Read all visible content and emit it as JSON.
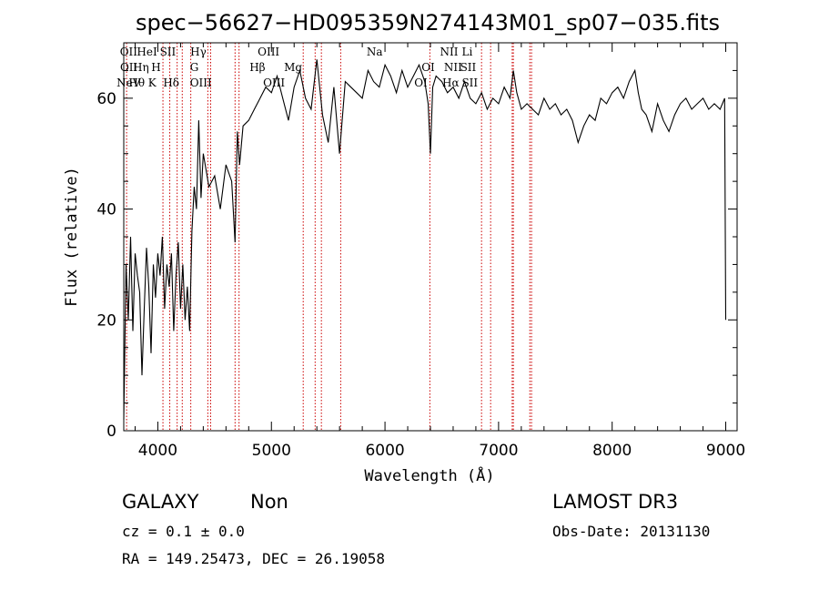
{
  "chart_data": {
    "type": "line",
    "title": "spec−56627−HD095359N274143M01_sp07−035.fits",
    "xlabel": "Wavelength (Å)",
    "ylabel": "Flux (relative)",
    "xlim": [
      3700,
      9100
    ],
    "ylim": [
      0,
      70
    ],
    "xticks": [
      4000,
      5000,
      6000,
      7000,
      8000,
      9000
    ],
    "yticks": [
      0,
      20,
      40,
      60
    ],
    "grid": false,
    "series": [
      {
        "x": [
          3700,
          3720,
          3740,
          3760,
          3780,
          3800,
          3820,
          3840,
          3860,
          3880,
          3900,
          3920,
          3940,
          3960,
          3980,
          4000,
          4020,
          4040,
          4060,
          4080,
          4100,
          4120,
          4140,
          4160,
          4180,
          4200,
          4220,
          4240,
          4260,
          4280,
          4300,
          4320,
          4340,
          4360,
          4380,
          4400,
          4450,
          4500,
          4550,
          4600,
          4650,
          4680,
          4700,
          4720,
          4750,
          4800,
          4850,
          4900,
          4950,
          5000,
          5050,
          5100,
          5150,
          5200,
          5250,
          5300,
          5350,
          5400,
          5450,
          5500,
          5550,
          5600,
          5650,
          5700,
          5750,
          5800,
          5850,
          5900,
          5950,
          6000,
          6050,
          6100,
          6150,
          6200,
          6250,
          6300,
          6350,
          6380,
          6400,
          6420,
          6450,
          6500,
          6550,
          6600,
          6650,
          6700,
          6750,
          6800,
          6850,
          6900,
          6950,
          7000,
          7050,
          7100,
          7130,
          7160,
          7200,
          7250,
          7300,
          7350,
          7400,
          7450,
          7500,
          7550,
          7600,
          7650,
          7700,
          7750,
          7800,
          7850,
          7900,
          7950,
          8000,
          8050,
          8100,
          8150,
          8200,
          8230,
          8260,
          8300,
          8350,
          8400,
          8450,
          8500,
          8550,
          8600,
          8650,
          8700,
          8750,
          8800,
          8850,
          8900,
          8950,
          8990,
          9000
        ],
        "y": [
          2,
          30,
          20,
          35,
          18,
          32,
          28,
          25,
          10,
          22,
          33,
          26,
          14,
          30,
          24,
          32,
          28,
          35,
          22,
          30,
          26,
          32,
          18,
          28,
          34,
          22,
          30,
          20,
          26,
          18,
          36,
          44,
          40,
          56,
          42,
          50,
          44,
          46,
          40,
          48,
          45,
          34,
          54,
          48,
          55,
          56,
          58,
          60,
          62,
          61,
          64,
          60,
          56,
          62,
          65,
          60,
          58,
          67,
          57,
          52,
          62,
          50,
          63,
          62,
          61,
          60,
          65,
          63,
          62,
          66,
          64,
          61,
          65,
          62,
          64,
          66,
          63,
          59,
          50,
          62,
          64,
          63,
          61,
          62,
          60,
          63,
          60,
          59,
          61,
          58,
          60,
          59,
          62,
          60,
          65,
          61,
          58,
          59,
          58,
          57,
          60,
          58,
          59,
          57,
          58,
          56,
          52,
          55,
          57,
          56,
          60,
          59,
          61,
          62,
          60,
          63,
          65,
          61,
          58,
          57,
          54,
          59,
          56,
          54,
          57,
          59,
          60,
          58,
          59,
          60,
          58,
          59,
          58,
          60,
          20
        ]
      }
    ],
    "spectral_lines": [
      {
        "label": "NeV",
        "wl": 3726,
        "row": 3
      },
      {
        "label": "OII",
        "wl": 3727,
        "row": 1
      },
      {
        "label": "OII",
        "wl": 3729,
        "row": 2
      },
      {
        "label": "Hθ",
        "wl": 3798,
        "row": 3
      },
      {
        "label": "Hη",
        "wl": 3835,
        "row": 2
      },
      {
        "label": "HeI",
        "wl": 3889,
        "row": 1
      },
      {
        "label": "K",
        "wl": 3934,
        "row": 3
      },
      {
        "label": "H",
        "wl": 3968,
        "row": 2
      },
      {
        "label": "SII",
        "wl": 4072,
        "row": 1
      },
      {
        "label": "Hδ",
        "wl": 4102,
        "row": 3
      },
      {
        "label": "Hγ",
        "wl": 4341,
        "row": 1
      },
      {
        "label": "G",
        "wl": 4305,
        "row": 2
      },
      {
        "label": "OIII",
        "wl": 4363,
        "row": 3
      },
      {
        "label": "Hβ",
        "wl": 4861,
        "row": 2
      },
      {
        "label": "OIII",
        "wl": 4959,
        "row": 1
      },
      {
        "label": "OIII",
        "wl": 5007,
        "row": 3
      },
      {
        "label": "Mg",
        "wl": 5175,
        "row": 2
      },
      {
        "label": "Na",
        "wl": 5893,
        "row": 1
      },
      {
        "label": "OI",
        "wl": 6300,
        "row": 3
      },
      {
        "label": "OI",
        "wl": 6364,
        "row": 2
      },
      {
        "label": "NII",
        "wl": 6548,
        "row": 1
      },
      {
        "label": "NII",
        "wl": 6583,
        "row": 2
      },
      {
        "label": "Hα",
        "wl": 6563,
        "row": 3
      },
      {
        "label": "Li",
        "wl": 6708,
        "row": 1
      },
      {
        "label": "SII",
        "wl": 6716,
        "row": 2
      },
      {
        "label": "SII",
        "wl": 6731,
        "row": 3
      }
    ],
    "line_wavelengths": [
      3725,
      4045,
      4105,
      4170,
      4215,
      4290,
      4440,
      4465,
      4680,
      4715,
      5280,
      5385,
      5440,
      5610,
      6395,
      6850,
      6930,
      7120,
      7130,
      7275,
      7290
    ]
  },
  "info": {
    "object_class": "GALAXY",
    "subclass": "Non",
    "survey": "LAMOST DR3",
    "redshift": "cz =  0.1 ±  0.0",
    "obs_date": "Obs-Date: 20131130",
    "coords": "RA = 149.25473, DEC =  26.19058"
  },
  "colors": {
    "spectrum": "#000000",
    "line_marker": "#cc0000"
  }
}
